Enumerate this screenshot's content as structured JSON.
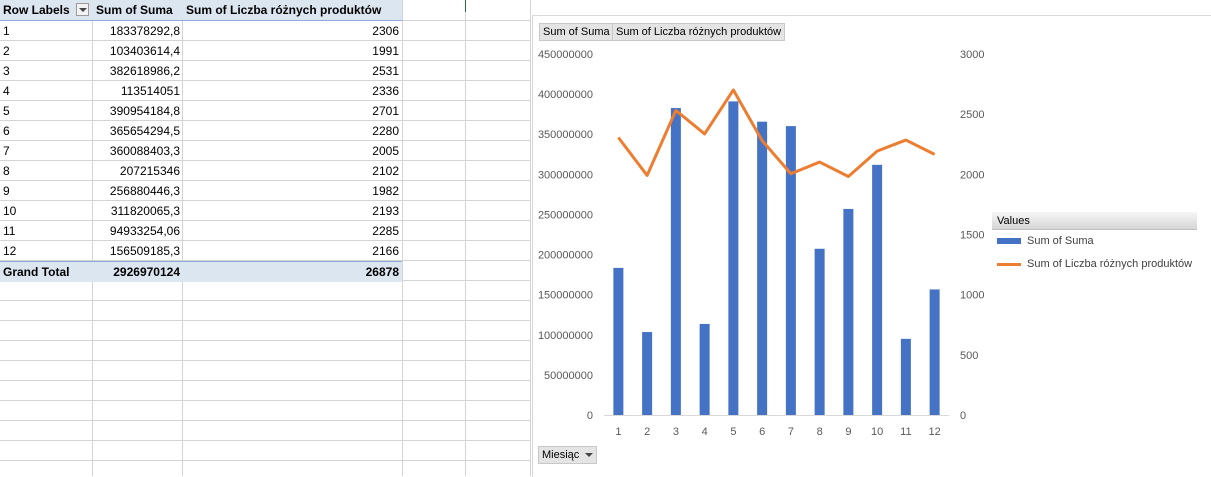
{
  "pivot": {
    "headers": [
      "Row Labels",
      "Sum of Suma",
      "Sum of Liczba różnych produktów"
    ],
    "rows": [
      {
        "label": "1",
        "suma": "183378292,8",
        "liczba": "2306"
      },
      {
        "label": "2",
        "suma": "103403614,4",
        "liczba": "1991"
      },
      {
        "label": "3",
        "suma": "382618986,2",
        "liczba": "2531"
      },
      {
        "label": "4",
        "suma": "113514051",
        "liczba": "2336"
      },
      {
        "label": "5",
        "suma": "390954184,8",
        "liczba": "2701"
      },
      {
        "label": "6",
        "suma": "365654294,5",
        "liczba": "2280"
      },
      {
        "label": "7",
        "suma": "360088403,3",
        "liczba": "2005"
      },
      {
        "label": "8",
        "suma": "207215346",
        "liczba": "2102"
      },
      {
        "label": "9",
        "suma": "256880446,3",
        "liczba": "1982"
      },
      {
        "label": "10",
        "suma": "311820065,3",
        "liczba": "2193"
      },
      {
        "label": "11",
        "suma": "94933254,06",
        "liczba": "2285"
      },
      {
        "label": "12",
        "suma": "156509185,3",
        "liczba": "2166"
      }
    ],
    "grand_total": {
      "label": "Grand Total",
      "suma": "2926970124",
      "liczba": "26878"
    }
  },
  "chart": {
    "field_buttons": [
      "Sum of Suma",
      "Sum of Liczba różnych produktów"
    ],
    "axis_field_button": "Miesiąc",
    "legend": {
      "title": "Values",
      "items": [
        "Sum of Suma",
        "Sum of Liczba różnych produktów"
      ]
    }
  },
  "chart_data": {
    "type": "bar",
    "categories": [
      "1",
      "2",
      "3",
      "4",
      "5",
      "6",
      "7",
      "8",
      "9",
      "10",
      "11",
      "12"
    ],
    "series": [
      {
        "name": "Sum of Suma",
        "type": "bar",
        "axis": "left",
        "color": "#4472c4",
        "values": [
          183378292.8,
          103403614.4,
          382618986.2,
          113514051,
          390954184.8,
          365654294.5,
          360088403.3,
          207215346,
          256880446.3,
          311820065.3,
          94933254.06,
          156509185.3
        ]
      },
      {
        "name": "Sum of Liczba różnych produktów",
        "type": "line",
        "axis": "right",
        "color": "#ed7d31",
        "values": [
          2306,
          1991,
          2531,
          2336,
          2701,
          2280,
          2005,
          2102,
          1982,
          2193,
          2285,
          2166
        ]
      }
    ],
    "ylim_left": [
      0,
      450000000
    ],
    "ylim_right": [
      0,
      3000
    ],
    "left_ticks": [
      "0",
      "50000000",
      "100000000",
      "150000000",
      "200000000",
      "250000000",
      "300000000",
      "350000000",
      "400000000",
      "450000000"
    ],
    "right_ticks": [
      "0",
      "500",
      "1000",
      "1500",
      "2000",
      "2500",
      "3000"
    ],
    "legend_position": "right",
    "grid": false
  }
}
